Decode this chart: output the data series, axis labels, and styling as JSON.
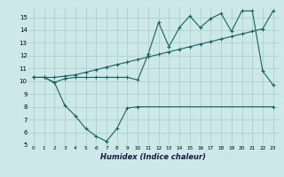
{
  "bg_color": "#cce8e8",
  "grid_color": "#aacccc",
  "line_color": "#1a6060",
  "xlabel": "Humidex (Indice chaleur)",
  "xlim": [
    -0.5,
    23.5
  ],
  "ylim": [
    5,
    15.8
  ],
  "yticks": [
    5,
    6,
    7,
    8,
    9,
    10,
    11,
    12,
    13,
    14,
    15
  ],
  "xticks": [
    0,
    1,
    2,
    3,
    4,
    5,
    6,
    7,
    8,
    9,
    10,
    11,
    12,
    13,
    14,
    15,
    16,
    17,
    18,
    19,
    20,
    21,
    22,
    23
  ],
  "curve1_x": [
    0,
    1,
    2,
    3,
    4,
    5,
    6,
    7,
    8,
    9,
    10,
    11,
    12,
    13,
    14,
    15,
    16,
    17,
    18,
    19,
    20,
    21,
    22,
    23
  ],
  "curve1_y": [
    10.3,
    10.3,
    9.9,
    10.2,
    10.3,
    10.3,
    10.3,
    10.3,
    10.3,
    10.3,
    10.1,
    12.1,
    14.6,
    12.7,
    14.2,
    15.1,
    14.2,
    14.9,
    15.3,
    13.9,
    15.5,
    15.5,
    10.8,
    9.7
  ],
  "curve2_x": [
    0,
    2,
    3,
    4,
    5,
    6,
    7,
    8,
    9,
    10,
    11,
    12,
    13,
    14,
    15,
    16,
    17,
    18,
    19,
    20,
    21,
    22,
    23
  ],
  "curve2_y": [
    10.3,
    10.3,
    10.4,
    10.5,
    10.7,
    10.9,
    11.1,
    11.3,
    11.5,
    11.7,
    11.9,
    12.1,
    12.3,
    12.5,
    12.7,
    12.9,
    13.1,
    13.3,
    13.5,
    13.7,
    13.9,
    14.1,
    15.5
  ],
  "curve3_x": [
    0,
    1,
    2,
    3,
    4,
    5,
    6,
    7,
    8,
    9,
    10,
    23
  ],
  "curve3_y": [
    10.3,
    10.3,
    9.9,
    8.1,
    7.3,
    6.3,
    5.7,
    5.3,
    6.3,
    7.9,
    8.0,
    8.0
  ]
}
